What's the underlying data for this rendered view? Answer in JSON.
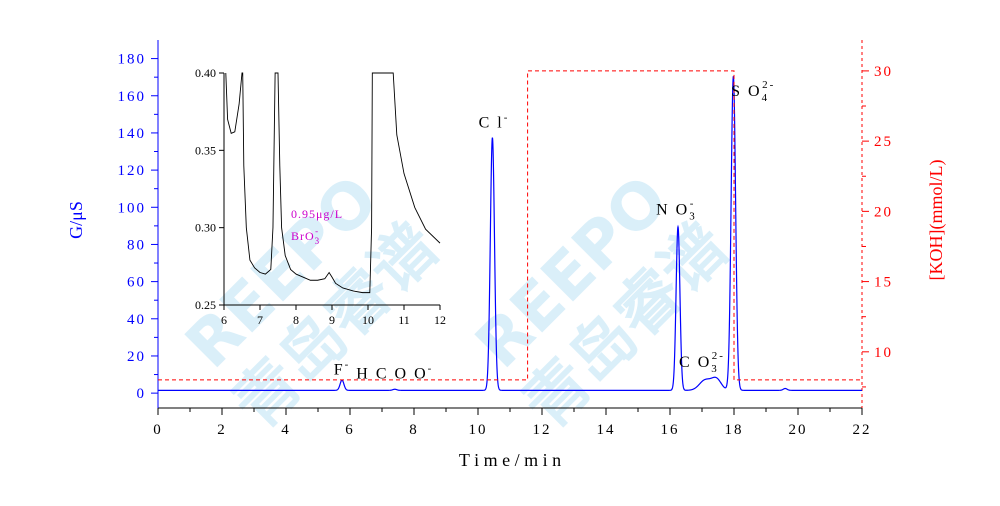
{
  "chart_data": {
    "type": "line",
    "xlabel": "T i m e / m i n",
    "ylabel_left": "G/μS",
    "ylabel_right": "[KOH](mmol/L)",
    "xlim": [
      0,
      22
    ],
    "ylim_left": [
      -8,
      190
    ],
    "ylim_right": [
      6.0,
      32.2
    ],
    "x_ticks": [
      0,
      2,
      4,
      6,
      8,
      10,
      12,
      14,
      16,
      18,
      20,
      22
    ],
    "y_left_ticks": [
      0,
      20,
      40,
      60,
      80,
      100,
      120,
      140,
      160,
      180
    ],
    "y_right_ticks": [
      10,
      15,
      20,
      25,
      30
    ],
    "colors": {
      "signal": "#0000ff",
      "gradient": "#ff0000",
      "inset": "#000000",
      "annot": "#cc00cc"
    },
    "series": [
      {
        "name": "signal",
        "axis": "left",
        "baseline": 1.5,
        "peaks": [
          {
            "x": 5.75,
            "h": 5.5,
            "w": 0.06
          },
          {
            "x": 7.4,
            "h": 0.6,
            "w": 0.06
          },
          {
            "x": 10.45,
            "h": 136,
            "w": 0.065
          },
          {
            "x": 16.25,
            "h": 88,
            "w": 0.06
          },
          {
            "x": 17.1,
            "h": 5.5,
            "w": 0.18
          },
          {
            "x": 17.45,
            "h": 6,
            "w": 0.15
          },
          {
            "x": 17.98,
            "h": 169,
            "w": 0.07
          },
          {
            "x": 19.6,
            "h": 1.0,
            "w": 0.06
          }
        ]
      },
      {
        "name": "gradient",
        "axis": "right",
        "points": [
          [
            0,
            8
          ],
          [
            11.55,
            8
          ],
          [
            11.55,
            30
          ],
          [
            18.0,
            30
          ],
          [
            18.0,
            8
          ],
          [
            22,
            8
          ]
        ]
      }
    ],
    "annotations": [
      {
        "label": "F",
        "sup": "-",
        "x": 5.75,
        "y": 10
      },
      {
        "label": "H C O O",
        "sup": "-",
        "x": 7.4,
        "y": 8
      },
      {
        "label": "C l",
        "sup": "-",
        "x": 10.5,
        "y": 143
      },
      {
        "label": "N O",
        "sub": "3",
        "sup": "-",
        "x": 16.2,
        "y": 96
      },
      {
        "label": "C O",
        "sub": "3",
        "sup": "2-",
        "x": 17.0,
        "y": 14
      },
      {
        "label": "S O",
        "sub": "4",
        "sup": "2-",
        "x": 18.6,
        "y": 160
      }
    ],
    "inset": {
      "xlim": [
        6,
        12
      ],
      "ylim": [
        0.25,
        0.4
      ],
      "x_ticks": [
        6,
        7,
        8,
        9,
        10,
        11,
        12
      ],
      "y_ticks": [
        "0.25",
        "0.30",
        "0.35",
        "0.40"
      ],
      "points": [
        [
          6.05,
          0.4
        ],
        [
          6.1,
          0.37
        ],
        [
          6.2,
          0.361
        ],
        [
          6.3,
          0.362
        ],
        [
          6.42,
          0.38
        ],
        [
          6.5,
          0.4
        ],
        [
          6.52,
          0.4
        ],
        [
          6.55,
          0.34
        ],
        [
          6.62,
          0.3
        ],
        [
          6.72,
          0.279
        ],
        [
          6.85,
          0.274
        ],
        [
          7.0,
          0.271
        ],
        [
          7.15,
          0.27
        ],
        [
          7.3,
          0.273
        ],
        [
          7.36,
          0.3
        ],
        [
          7.42,
          0.4
        ],
        [
          7.5,
          0.4
        ],
        [
          7.55,
          0.34
        ],
        [
          7.6,
          0.3
        ],
        [
          7.7,
          0.282
        ],
        [
          7.85,
          0.273
        ],
        [
          8.0,
          0.27
        ],
        [
          8.2,
          0.268
        ],
        [
          8.4,
          0.266
        ],
        [
          8.6,
          0.266
        ],
        [
          8.8,
          0.267
        ],
        [
          8.92,
          0.271
        ],
        [
          9.0,
          0.268
        ],
        [
          9.1,
          0.264
        ],
        [
          9.3,
          0.261
        ],
        [
          9.6,
          0.259
        ],
        [
          9.85,
          0.258
        ],
        [
          10.05,
          0.258
        ],
        [
          10.1,
          0.3
        ],
        [
          10.12,
          0.4
        ],
        [
          10.7,
          0.4
        ],
        [
          10.8,
          0.36
        ],
        [
          11.0,
          0.335
        ],
        [
          11.3,
          0.313
        ],
        [
          11.6,
          0.299
        ],
        [
          12.0,
          0.29
        ]
      ],
      "annotation_text": "0.95μg/L",
      "annotation_ion": "BrO",
      "annotation_sub": "3",
      "annotation_sup": "-"
    }
  },
  "watermark": {
    "latin": "REEPO",
    "cjk": "青岛睿谱"
  }
}
